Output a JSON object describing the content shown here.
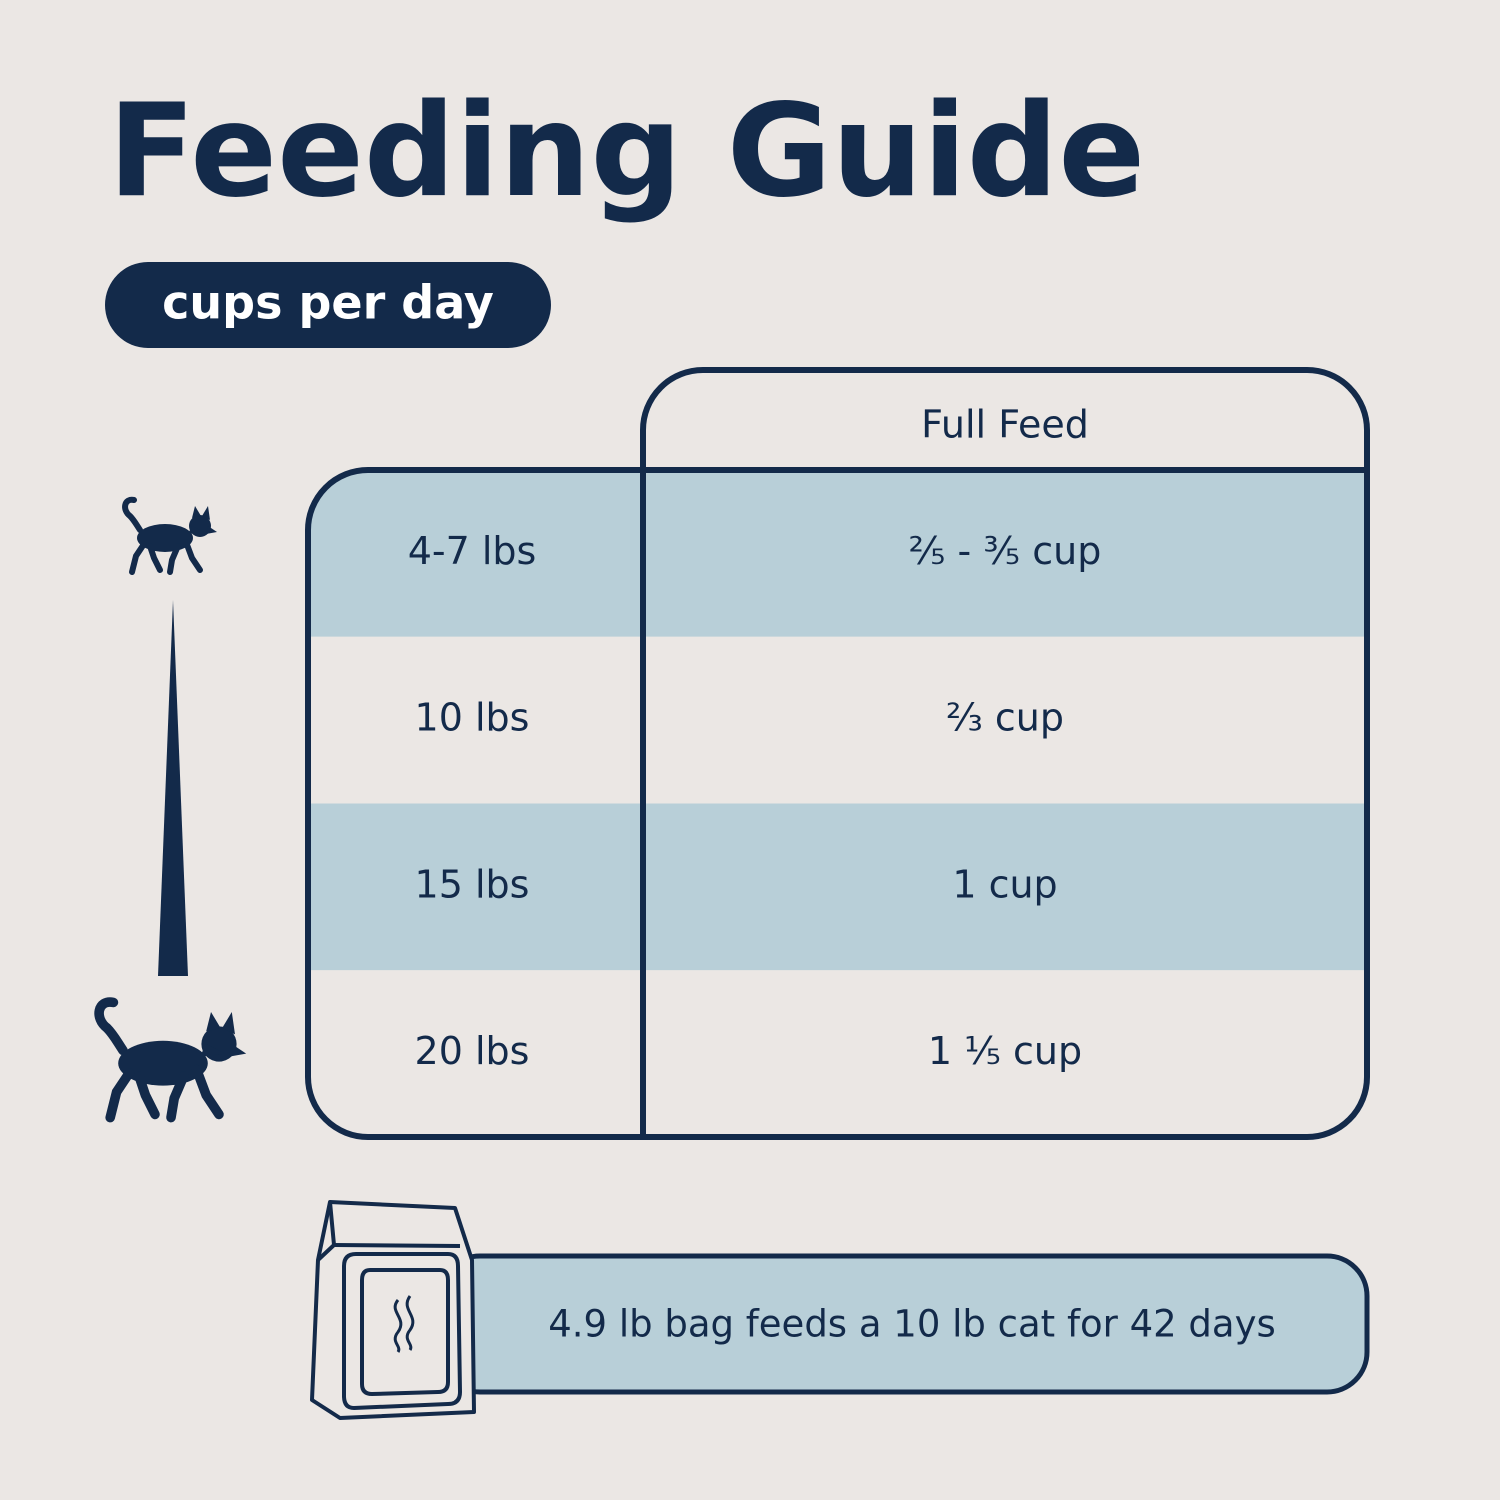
{
  "header": {
    "title": "Feeding Guide",
    "subtitle": "cups per day"
  },
  "table": {
    "column_header": "Full Feed",
    "rows": [
      [
        "4-7 lbs",
        "²⁄₅ - ³⁄₅ cup"
      ],
      [
        "10 lbs",
        "²⁄₃ cup"
      ],
      [
        "15 lbs",
        "1 cup"
      ],
      [
        "20 lbs",
        "1 ¹⁄₅ cup"
      ]
    ]
  },
  "footer": {
    "note": "4.9 lb bag feeds a 10 lb cat for 42 days"
  }
}
